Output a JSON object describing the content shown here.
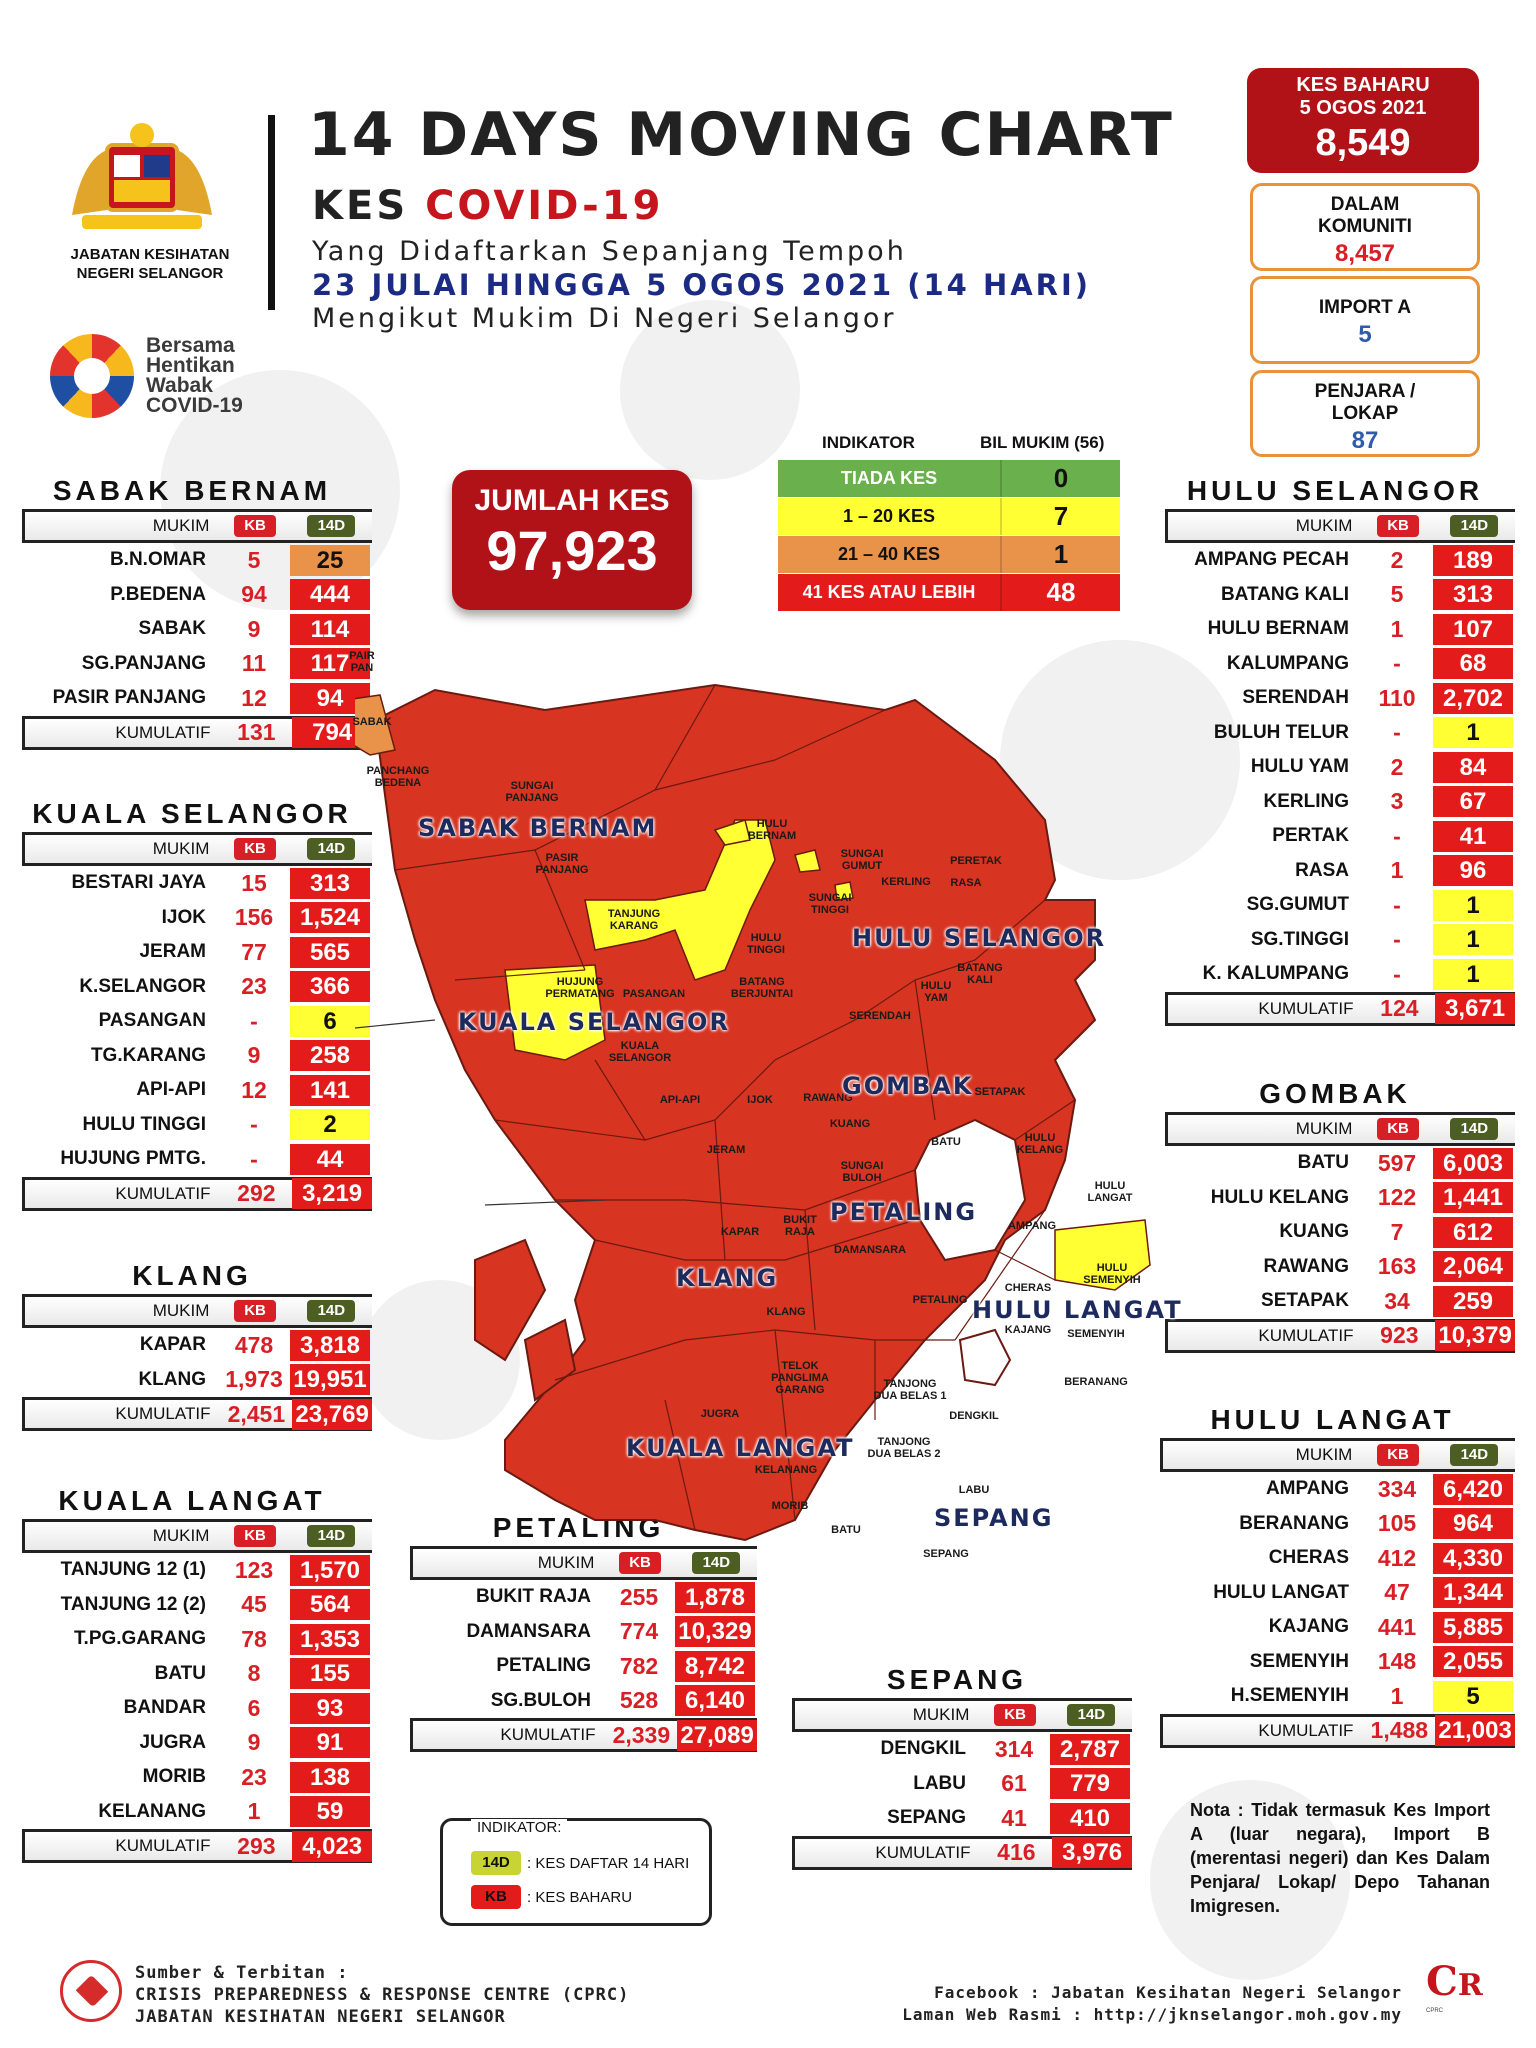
{
  "header": {
    "dept": "JABATAN KESIHATAN NEGERI SELANGOR",
    "title": "14 DAYS MOVING CHART",
    "subtitle_part1": "KES ",
    "subtitle_part2": "COVID-19",
    "line1": "Yang Didaftarkan Sepanjang Tempoh",
    "line2": "23 JULAI HINGGA 5 OGOS 2021 (14 HARI)",
    "line3": "Mengikut Mukim Di Negeri Selangor",
    "campaign": [
      "Bersama",
      "Hentikan",
      "Wabak",
      "COVID-19"
    ]
  },
  "cases": {
    "new_label": "KES BAHARU",
    "new_date": "5 OGOS 2021",
    "new_value": "8,549",
    "community_label": "DALAM KOMUNITI",
    "community_value": "8,457",
    "import_label": "IMPORT A",
    "import_value": "5",
    "prison_label": "PENJARA / LOKAP",
    "prison_value": "87"
  },
  "total": {
    "label": "JUMLAH KES",
    "value": "97,923"
  },
  "indicator": {
    "head_label": "INDIKATOR",
    "head_count": "BIL MUKIM (56)",
    "rows": [
      {
        "label": "TIADA KES",
        "count": "0",
        "color": "#6ab04c"
      },
      {
        "label": "1 – 20 KES",
        "count": "7",
        "color": "#ffff33"
      },
      {
        "label": "21 – 40 KES",
        "count": "1",
        "color": "#e8924a"
      },
      {
        "label": "41 KES ATAU LEBIH",
        "count": "48",
        "color": "#e31b1b"
      }
    ]
  },
  "table_headers": {
    "mukim": "MUKIM",
    "kb": "KB",
    "d14": "14D",
    "cumulative": "KUMULATIF"
  },
  "districts": {
    "sabak_bernam": {
      "name": "SABAK BERNAM",
      "rows": [
        {
          "mukim": "B.N.OMAR",
          "kb": "5",
          "d14": "25",
          "level": "orange"
        },
        {
          "mukim": "P.BEDENA",
          "kb": "94",
          "d14": "444",
          "level": "red"
        },
        {
          "mukim": "SABAK",
          "kb": "9",
          "d14": "114",
          "level": "red"
        },
        {
          "mukim": "SG.PANJANG",
          "kb": "11",
          "d14": "117",
          "level": "red"
        },
        {
          "mukim": "PASIR PANJANG",
          "kb": "12",
          "d14": "94",
          "level": "red"
        }
      ],
      "cum_kb": "131",
      "cum_d14": "794"
    },
    "kuala_selangor": {
      "name": "KUALA SELANGOR",
      "rows": [
        {
          "mukim": "BESTARI JAYA",
          "kb": "15",
          "d14": "313",
          "level": "red"
        },
        {
          "mukim": "IJOK",
          "kb": "156",
          "d14": "1,524",
          "level": "red"
        },
        {
          "mukim": "JERAM",
          "kb": "77",
          "d14": "565",
          "level": "red"
        },
        {
          "mukim": "K.SELANGOR",
          "kb": "23",
          "d14": "366",
          "level": "red"
        },
        {
          "mukim": "PASANGAN",
          "kb": "-",
          "d14": "6",
          "level": "yellow"
        },
        {
          "mukim": "TG.KARANG",
          "kb": "9",
          "d14": "258",
          "level": "red"
        },
        {
          "mukim": "API-API",
          "kb": "12",
          "d14": "141",
          "level": "red"
        },
        {
          "mukim": "HULU TINGGI",
          "kb": "-",
          "d14": "2",
          "level": "yellow"
        },
        {
          "mukim": "HUJUNG PMTG.",
          "kb": "-",
          "d14": "44",
          "level": "red"
        }
      ],
      "cum_kb": "292",
      "cum_d14": "3,219"
    },
    "klang": {
      "name": "KLANG",
      "rows": [
        {
          "mukim": "KAPAR",
          "kb": "478",
          "d14": "3,818",
          "level": "red"
        },
        {
          "mukim": "KLANG",
          "kb": "1,973",
          "d14": "19,951",
          "level": "red"
        }
      ],
      "cum_kb": "2,451",
      "cum_d14": "23,769"
    },
    "kuala_langat": {
      "name": "KUALA LANGAT",
      "rows": [
        {
          "mukim": "TANJUNG 12 (1)",
          "kb": "123",
          "d14": "1,570",
          "level": "red"
        },
        {
          "mukim": "TANJUNG 12 (2)",
          "kb": "45",
          "d14": "564",
          "level": "red"
        },
        {
          "mukim": "T.PG.GARANG",
          "kb": "78",
          "d14": "1,353",
          "level": "red"
        },
        {
          "mukim": "BATU",
          "kb": "8",
          "d14": "155",
          "level": "red"
        },
        {
          "mukim": "BANDAR",
          "kb": "6",
          "d14": "93",
          "level": "red"
        },
        {
          "mukim": "JUGRA",
          "kb": "9",
          "d14": "91",
          "level": "red"
        },
        {
          "mukim": "MORIB",
          "kb": "23",
          "d14": "138",
          "level": "red"
        },
        {
          "mukim": "KELANANG",
          "kb": "1",
          "d14": "59",
          "level": "red"
        }
      ],
      "cum_kb": "293",
      "cum_d14": "4,023"
    },
    "petaling": {
      "name": "PETALING",
      "rows": [
        {
          "mukim": "BUKIT RAJA",
          "kb": "255",
          "d14": "1,878",
          "level": "red"
        },
        {
          "mukim": "DAMANSARA",
          "kb": "774",
          "d14": "10,329",
          "level": "red"
        },
        {
          "mukim": "PETALING",
          "kb": "782",
          "d14": "8,742",
          "level": "red"
        },
        {
          "mukim": "SG.BULOH",
          "kb": "528",
          "d14": "6,140",
          "level": "red"
        }
      ],
      "cum_kb": "2,339",
      "cum_d14": "27,089"
    },
    "sepang": {
      "name": "SEPANG",
      "rows": [
        {
          "mukim": "DENGKIL",
          "kb": "314",
          "d14": "2,787",
          "level": "red"
        },
        {
          "mukim": "LABU",
          "kb": "61",
          "d14": "779",
          "level": "red"
        },
        {
          "mukim": "SEPANG",
          "kb": "41",
          "d14": "410",
          "level": "red"
        }
      ],
      "cum_kb": "416",
      "cum_d14": "3,976"
    },
    "hulu_selangor": {
      "name": "HULU SELANGOR",
      "rows": [
        {
          "mukim": "AMPANG PECAH",
          "kb": "2",
          "d14": "189",
          "level": "red"
        },
        {
          "mukim": "BATANG KALI",
          "kb": "5",
          "d14": "313",
          "level": "red"
        },
        {
          "mukim": "HULU BERNAM",
          "kb": "1",
          "d14": "107",
          "level": "red"
        },
        {
          "mukim": "KALUMPANG",
          "kb": "-",
          "d14": "68",
          "level": "red"
        },
        {
          "mukim": "SERENDAH",
          "kb": "110",
          "d14": "2,702",
          "level": "red"
        },
        {
          "mukim": "BULUH TELUR",
          "kb": "-",
          "d14": "1",
          "level": "yellow"
        },
        {
          "mukim": "HULU YAM",
          "kb": "2",
          "d14": "84",
          "level": "red"
        },
        {
          "mukim": "KERLING",
          "kb": "3",
          "d14": "67",
          "level": "red"
        },
        {
          "mukim": "PERTAK",
          "kb": "-",
          "d14": "41",
          "level": "red"
        },
        {
          "mukim": "RASA",
          "kb": "1",
          "d14": "96",
          "level": "red"
        },
        {
          "mukim": "SG.GUMUT",
          "kb": "-",
          "d14": "1",
          "level": "yellow"
        },
        {
          "mukim": "SG.TINGGI",
          "kb": "-",
          "d14": "1",
          "level": "yellow"
        },
        {
          "mukim": "K. KALUMPANG",
          "kb": "-",
          "d14": "1",
          "level": "yellow"
        }
      ],
      "cum_kb": "124",
      "cum_d14": "3,671"
    },
    "gombak": {
      "name": "GOMBAK",
      "rows": [
        {
          "mukim": "BATU",
          "kb": "597",
          "d14": "6,003",
          "level": "red"
        },
        {
          "mukim": "HULU KELANG",
          "kb": "122",
          "d14": "1,441",
          "level": "red"
        },
        {
          "mukim": "KUANG",
          "kb": "7",
          "d14": "612",
          "level": "red"
        },
        {
          "mukim": "RAWANG",
          "kb": "163",
          "d14": "2,064",
          "level": "red"
        },
        {
          "mukim": "SETAPAK",
          "kb": "34",
          "d14": "259",
          "level": "red"
        }
      ],
      "cum_kb": "923",
      "cum_d14": "10,379"
    },
    "hulu_langat": {
      "name": "HULU LANGAT",
      "rows": [
        {
          "mukim": "AMPANG",
          "kb": "334",
          "d14": "6,420",
          "level": "red"
        },
        {
          "mukim": "BERANANG",
          "kb": "105",
          "d14": "964",
          "level": "red"
        },
        {
          "mukim": "CHERAS",
          "kb": "412",
          "d14": "4,330",
          "level": "red"
        },
        {
          "mukim": "HULU LANGAT",
          "kb": "47",
          "d14": "1,344",
          "level": "red"
        },
        {
          "mukim": "KAJANG",
          "kb": "441",
          "d14": "5,885",
          "level": "red"
        },
        {
          "mukim": "SEMENYIH",
          "kb": "148",
          "d14": "2,055",
          "level": "red"
        },
        {
          "mukim": "H.SEMENYIH",
          "kb": "1",
          "d14": "5",
          "level": "yellow"
        }
      ],
      "cum_kb": "1,488",
      "cum_d14": "21,003"
    }
  },
  "map": {
    "district_labels": {
      "sabak_bernam": "SABAK BERNAM",
      "hulu_selangor": "HULU SELANGOR",
      "kuala_selangor": "KUALA SELANGOR",
      "gombak": "GOMBAK",
      "petaling": "PETALING",
      "klang": "KLANG",
      "hulu_langat": "HULU LANGAT",
      "kuala_langat": "KUALA LANGAT",
      "sepang": "SEPANG"
    },
    "mukim_labels": [
      {
        "id": "pair",
        "text": "PAIR\nPAN"
      },
      {
        "id": "sabak",
        "text": "SABAK"
      },
      {
        "id": "panchang",
        "text": "PANCHANG\nBEDENA"
      },
      {
        "id": "sgpanjang",
        "text": "SUNGAI\nPANJANG"
      },
      {
        "id": "pasirpanjang",
        "text": "PASIR\nPANJANG"
      },
      {
        "id": "tgkarang",
        "text": "TANJUNG\nKARANG"
      },
      {
        "id": "huluber",
        "text": "HULU\nBERNAM"
      },
      {
        "id": "sgtinggi",
        "text": "SUNGAI\nTINGGI"
      },
      {
        "id": "sgai",
        "text": "SUNGAI\nGUMUT"
      },
      {
        "id": "kerling",
        "text": "KERLING"
      },
      {
        "id": "peretak",
        "text": "PERETAK"
      },
      {
        "id": "rasa",
        "text": "RASA"
      },
      {
        "id": "hulutinggi",
        "text": "HULU\nTINGGI"
      },
      {
        "id": "batangkali",
        "text": "BATANG\nKALI"
      },
      {
        "id": "huluyam",
        "text": "HULU\nYAM"
      },
      {
        "id": "hujung",
        "text": "HUJUNG\nPERMATANG"
      },
      {
        "id": "pasangan",
        "text": "PASANGAN"
      },
      {
        "id": "batangber",
        "text": "BATANG\nBERJUNTAI"
      },
      {
        "id": "serendah",
        "text": "SERENDAH"
      },
      {
        "id": "kselangor",
        "text": "KUALA\nSELANGOR"
      },
      {
        "id": "apiapi",
        "text": "API-API"
      },
      {
        "id": "ijok",
        "text": "IJOK"
      },
      {
        "id": "rawang",
        "text": "RAWANG"
      },
      {
        "id": "setapak",
        "text": "SETAPAK"
      },
      {
        "id": "kuang",
        "text": "KUANG"
      },
      {
        "id": "batu",
        "text": "BATU"
      },
      {
        "id": "hulukelang",
        "text": "HULU\nKELANG"
      },
      {
        "id": "jeram",
        "text": "JERAM"
      },
      {
        "id": "sgbuloh",
        "text": "SUNGAI\nBULOH"
      },
      {
        "id": "hululangat",
        "text": "HULU\nLANGAT"
      },
      {
        "id": "bukitraja",
        "text": "BUKIT\nRAJA"
      },
      {
        "id": "kapar",
        "text": "KAPAR"
      },
      {
        "id": "damansara",
        "text": "DAMANSARA"
      },
      {
        "id": "ampang",
        "text": "AMPANG"
      },
      {
        "id": "hulusemenyih",
        "text": "HULU\nSEMENYIH"
      },
      {
        "id": "klangm",
        "text": "KLANG"
      },
      {
        "id": "petalingm",
        "text": "PETALING"
      },
      {
        "id": "cheras",
        "text": "CHERAS"
      },
      {
        "id": "kajang",
        "text": "KAJANG"
      },
      {
        "id": "semenyih",
        "text": "SEMENYIH"
      },
      {
        "id": "telok",
        "text": "TELOK\nPANGLIMA\nGARANG"
      },
      {
        "id": "tanjong",
        "text": "TANJONG\nDUA BELAS 1"
      },
      {
        "id": "tanjong2",
        "text": "TANJONG\nDUA BELAS 2"
      },
      {
        "id": "beranang",
        "text": "BERANANG"
      },
      {
        "id": "dengkil",
        "text": "DENGKIL"
      },
      {
        "id": "jugra",
        "text": "JUGRA"
      },
      {
        "id": "kelanang",
        "text": "KELANANG"
      },
      {
        "id": "morib",
        "text": "MORIB"
      },
      {
        "id": "labu",
        "text": "LABU"
      },
      {
        "id": "batum",
        "text": "BATU"
      },
      {
        "id": "sepangm",
        "text": "SEPANG"
      }
    ]
  },
  "legend": {
    "title": "INDIKATOR:",
    "d14_tag": "14D",
    "d14_desc": ": KES DAFTAR 14 HARI",
    "kb_tag": "KB",
    "kb_desc": ": KES BAHARU"
  },
  "nota": "Nota : Tidak termasuk Kes Import A (luar negara), Import B (merentasi negeri) dan Kes Dalam Penjara/ Lokap/ Depo Tahanan Imigresen.",
  "footer": {
    "left1": "Sumber & Terbitan :",
    "left2": "CRISIS PREPAREDNESS & RESPONSE CENTRE (CPRC)",
    "left3": "JABATAN KESIHATAN NEGERI SELANGOR",
    "right1": "Facebook : Jabatan Kesihatan Negeri Selangor",
    "right2": "Laman Web Rasmi : http://jknselangor.moh.gov.my",
    "cprc_logo": "CPRC"
  },
  "colors": {
    "red": "#e31b1b",
    "orange": "#e8924a",
    "yellow": "#ffff33",
    "green": "#6ab04c",
    "dark_red": "#b01218",
    "navy": "#1c2a5e"
  }
}
